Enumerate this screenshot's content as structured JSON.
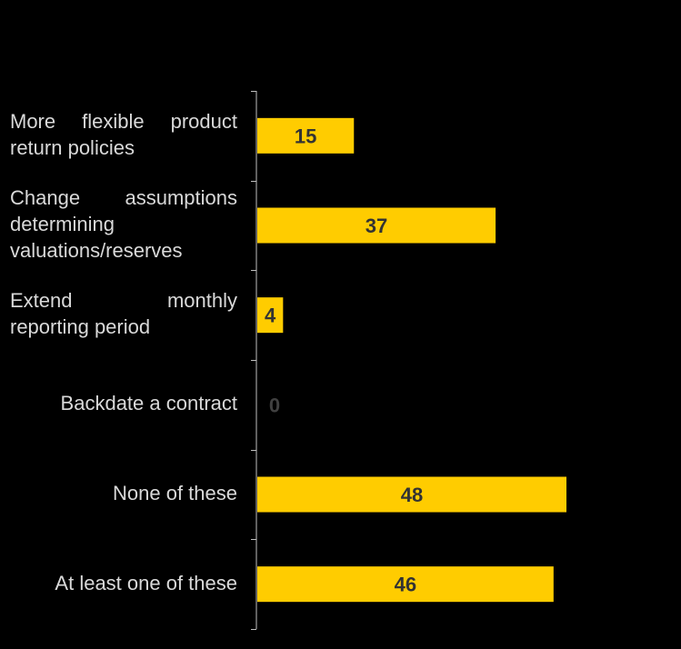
{
  "chart_data": {
    "type": "bar",
    "orientation": "horizontal",
    "categories": [
      "More flexible product return policies",
      "Change assumptions determining valuations/reserves",
      "Extend monthly reporting period",
      "Backdate a contract",
      "None of these",
      "At least one of these"
    ],
    "values": [
      15,
      37,
      4,
      0,
      48,
      46
    ],
    "data_labels": [
      "15",
      "37",
      "4",
      "0",
      "48",
      "46"
    ],
    "xlim": [
      0,
      48
    ],
    "grid": false,
    "legend": "none",
    "bar_color": "#ffcc00",
    "label_color": "#333333",
    "zero_label_color": "#404040",
    "category_label_color": "#d9d9d9",
    "axis_color": "#bfbfbf",
    "background": "#000000"
  }
}
